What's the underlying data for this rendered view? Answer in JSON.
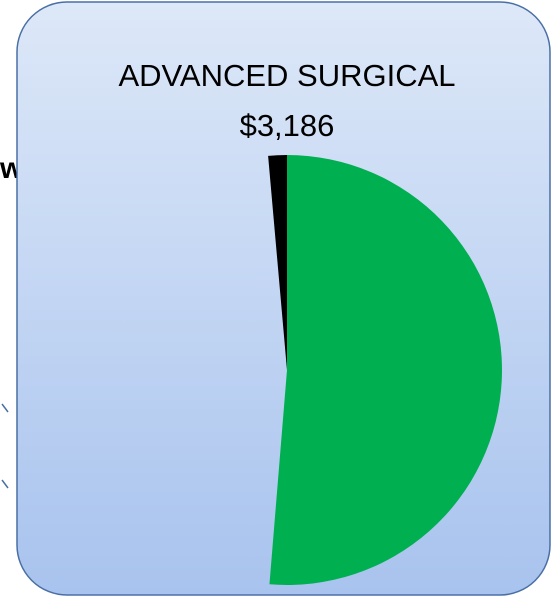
{
  "fragment_text": "w",
  "chart_data": {
    "type": "pie",
    "title": "ADVANCED SURGICAL",
    "subtitle": "$3,186",
    "categories": [
      null,
      null,
      null
    ],
    "values": [
      51.3,
      47.3,
      1.4
    ],
    "colors": [
      "#00b050",
      "none",
      "#000000"
    ]
  }
}
